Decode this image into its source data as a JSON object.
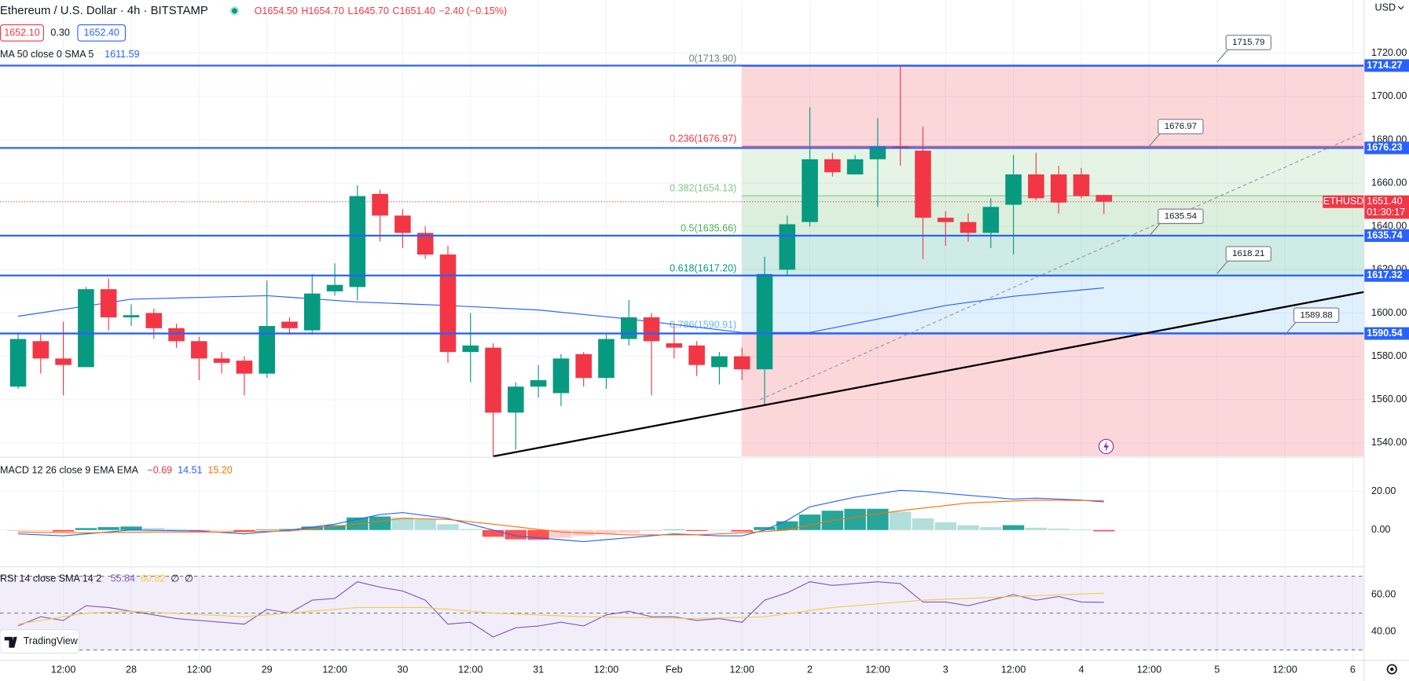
{
  "chart_data": [
    {
      "type": "candlestick",
      "title": "Ethereum / U.S. Dollar · 4h · BITSTAMP",
      "ohlc": [
        "O1654.50",
        "H1654.70",
        "L1645.70",
        "C1651.40",
        "−2.40 (−0.15%)"
      ],
      "up_color": "#089981",
      "down_color": "#f23645",
      "open": [
        1566,
        1587,
        1579,
        1575,
        1611,
        1598,
        1600,
        1593,
        1587,
        1579,
        1578,
        1572,
        1596,
        1592,
        1610,
        1612,
        1655,
        1645,
        1637,
        1627,
        1582,
        1584,
        1554,
        1566,
        1563,
        1581,
        1570,
        1588,
        1598,
        1586,
        1585,
        1575,
        1580,
        1574,
        1620,
        1642,
        1671,
        1664,
        1671,
        1677,
        1675,
        1644,
        1642,
        1637,
        1650,
        1664,
        1664,
        1664,
        1654.5
      ],
      "high": [
        1591,
        1590,
        1596,
        1612,
        1616,
        1604,
        1602,
        1595,
        1589,
        1582,
        1580,
        1615,
        1598,
        1618,
        1623,
        1659,
        1657,
        1648,
        1640,
        1631,
        1600,
        1586,
        1568,
        1576,
        1581,
        1582,
        1590,
        1606,
        1600,
        1594,
        1587,
        1582,
        1584,
        1626,
        1645,
        1695,
        1674,
        1673,
        1690,
        1713.9,
        1686,
        1647,
        1646,
        1653,
        1673,
        1674,
        1668,
        1667,
        1654.7
      ],
      "low": [
        1565,
        1572,
        1562,
        1575,
        1592,
        1594,
        1588,
        1584,
        1569,
        1572,
        1562,
        1570,
        1590,
        1590,
        1608,
        1606,
        1633,
        1630,
        1625,
        1577,
        1568,
        1534,
        1537,
        1561,
        1557,
        1566,
        1565,
        1585,
        1562,
        1579,
        1571,
        1567,
        1569,
        1557,
        1617,
        1640,
        1663,
        1664,
        1649,
        1668,
        1625,
        1631,
        1633,
        1630,
        1627,
        1652,
        1646,
        1653,
        1645.7
      ],
      "close": [
        1588,
        1579,
        1576,
        1611,
        1598,
        1599,
        1593,
        1587,
        1579,
        1577,
        1572,
        1594,
        1593,
        1609,
        1613,
        1654,
        1645,
        1637,
        1627,
        1582,
        1585,
        1554,
        1566,
        1569,
        1579,
        1570,
        1588,
        1598,
        1587,
        1584,
        1576,
        1580,
        1574,
        1618,
        1641,
        1671,
        1665,
        1671,
        1677,
        1676,
        1644,
        1642,
        1637,
        1649,
        1664,
        1653,
        1651,
        1654,
        1651.4
      ],
      "xlim": [
        -0.8,
        59.5
      ],
      "xticks": [
        {
          "value": 2,
          "label": "12:00"
        },
        {
          "value": 5,
          "label": "28"
        },
        {
          "value": 8,
          "label": "12:00"
        },
        {
          "value": 11,
          "label": "29"
        },
        {
          "value": 14,
          "label": "12:00"
        },
        {
          "value": 17,
          "label": "30"
        },
        {
          "value": 20,
          "label": "12:00"
        },
        {
          "value": 23,
          "label": "31"
        },
        {
          "value": 26,
          "label": "12:00"
        },
        {
          "value": 29,
          "label": "Feb"
        },
        {
          "value": 32,
          "label": "12:00"
        },
        {
          "value": 35,
          "label": "2"
        },
        {
          "value": 38,
          "label": "12:00"
        },
        {
          "value": 41,
          "label": "3"
        },
        {
          "value": 44,
          "label": "12:00"
        },
        {
          "value": 47,
          "label": "4"
        },
        {
          "value": 50,
          "label": "12:00"
        },
        {
          "value": 53,
          "label": "5"
        },
        {
          "value": 56,
          "label": "12:00"
        },
        {
          "value": 59,
          "label": "6"
        }
      ],
      "ylim": [
        1533.8,
        1744.5
      ],
      "yticks": [
        {
          "value": 1720,
          "label": "1720.00"
        },
        {
          "value": 1700,
          "label": "1700.00"
        },
        {
          "value": 1680,
          "label": "1680.00"
        },
        {
          "value": 1660,
          "label": "1660.00"
        },
        {
          "value": 1640,
          "label": "1640.00"
        },
        {
          "value": 1620,
          "label": "1620.00"
        },
        {
          "value": 1600,
          "label": "1600.00"
        },
        {
          "value": 1580,
          "label": "1580.00"
        },
        {
          "value": 1560,
          "label": "1560.00"
        },
        {
          "value": 1540,
          "label": "1540.00"
        }
      ],
      "grid": true,
      "ma": {
        "name": "MA 50 close 0 SMA 5",
        "color": "#2962ff",
        "x": [
          0,
          5,
          11,
          15,
          19,
          23,
          27,
          32,
          35,
          38,
          41,
          44,
          48
        ],
        "values": [
          1598.5,
          1606.4,
          1608,
          1605.1,
          1603.5,
          1601.4,
          1597.2,
          1591,
          1591,
          1597.2,
          1603.5,
          1607.7,
          1611.59
        ]
      },
      "fib": {
        "x_start": 32,
        "levels": [
          {
            "value": 1713.9,
            "label": "0(1713.90)",
            "color": "#787b86",
            "fill": "rgba(242,54,69,0.2)"
          },
          {
            "value": 1676.97,
            "label": "0.236(1676.97)",
            "color": "#f23645",
            "fill": "rgba(129,199,132,0.2)"
          },
          {
            "value": 1654.13,
            "label": "0.382(1654.13)",
            "color": "#81c784",
            "fill": "rgba(76,175,80,0.2)"
          },
          {
            "value": 1635.66,
            "label": "0.5(1635.66)",
            "color": "#4caf50",
            "fill": "rgba(8,153,129,0.2)"
          },
          {
            "value": 1617.2,
            "label": "0.618(1617.20)",
            "color": "#089981",
            "fill": "rgba(100,181,246,0.2)"
          },
          {
            "value": 1590.91,
            "label": "0.786(1590.91)",
            "color": "#64b5f6",
            "fill": "rgba(242,54,69,0.2)"
          }
        ]
      },
      "hlines": {
        "color": "#2962ff",
        "values": [
          1714.27,
          1676.23,
          1635.74,
          1617.32,
          1590.54
        ]
      },
      "notes": [
        {
          "x": 53,
          "value": 1715.79
        },
        {
          "x": 50,
          "value": 1676.97
        },
        {
          "x": 50,
          "value": 1635.54
        },
        {
          "x": 53,
          "value": 1618.21
        },
        {
          "x": 56,
          "value": 1589.88
        }
      ],
      "trendlines": [
        {
          "points": [
            [
              21,
              1533.8
            ],
            [
              59.5,
              1609.7
            ]
          ],
          "color": "#000000",
          "dashed": false
        },
        {
          "points": [
            [
              32.8,
              1560
            ],
            [
              59.5,
              1683.5
            ]
          ],
          "color": "#9598a1",
          "dashed": true
        }
      ],
      "last_price": {
        "value": 1651.4,
        "label": "1651.40"
      },
      "symbol": "ETHUSD",
      "countdown": "01:30:17"
    },
    {
      "type": "macd",
      "title": "MACD 12 26 close 9 EMA EMA",
      "ylim": [
        -18.6,
        37.2
      ],
      "yticks": [
        {
          "value": 20,
          "label": "20.00"
        },
        {
          "value": 0,
          "label": "0.00"
        }
      ],
      "histogram": {
        "colors": [
          "#26a69a",
          "#b2dfdb",
          "#ffcdd2",
          "#ff5252"
        ],
        "last_label": "−0.69",
        "values": [
          -0.5,
          -0.5,
          -0.8,
          1.0,
          1.5,
          1.8,
          1.0,
          0.5,
          -0.3,
          -0.3,
          -0.8,
          0.3,
          0.5,
          1.8,
          2.5,
          6.5,
          7.0,
          6.5,
          5.5,
          3.0,
          0.5,
          -3.5,
          -4.8,
          -5.0,
          -4.0,
          -3.0,
          -2.0,
          -1.5,
          -0.5,
          0.2,
          -0.5,
          -0.3,
          -0.8,
          1.5,
          4.5,
          8.0,
          10.0,
          11.0,
          11.0,
          9.5,
          6.0,
          4.0,
          2.5,
          1.5,
          2.5,
          1.2,
          0.7,
          0.3,
          -0.69
        ]
      },
      "macd": {
        "color": "#2962ff",
        "x": [
          0,
          2,
          5,
          8,
          10,
          12,
          14,
          16,
          17,
          19,
          21,
          22,
          24,
          25,
          27,
          29,
          31,
          32,
          33,
          34,
          35,
          37,
          39,
          40,
          42,
          44,
          45,
          47,
          48
        ],
        "values": [
          -2,
          -3,
          0,
          -0.5,
          -2,
          0,
          3,
          8,
          9,
          6,
          0,
          -3,
          -5,
          -6,
          -4,
          -2,
          -3,
          -3,
          0,
          5,
          12,
          17,
          20.5,
          20,
          18,
          16,
          16.5,
          15.5,
          14.51
        ]
      },
      "signal": {
        "color": "#ff6d00",
        "last_label": "15.20",
        "x": [
          0,
          3,
          6,
          9,
          12,
          15,
          17,
          19,
          21,
          24,
          27,
          30,
          32,
          34,
          36,
          39,
          42,
          45,
          48
        ],
        "values": [
          -1,
          -1.5,
          -1,
          -1,
          -0.5,
          3,
          6,
          5.5,
          3,
          -1,
          -2.5,
          -2.5,
          -1.5,
          0,
          5,
          10,
          14,
          15.5,
          15.2
        ]
      }
    },
    {
      "type": "rsi",
      "title": "RSI 14 close SMA 14 2",
      "extra_labels": [
        "∅",
        "∅"
      ],
      "ylim": [
        24.4,
        74.6
      ],
      "yticks": [
        {
          "value": 60,
          "label": "60.00"
        },
        {
          "value": 40,
          "label": "40.00"
        }
      ],
      "levels": [
        70,
        50,
        30
      ],
      "band_color": "rgba(126,87,194,0.1)",
      "rsi": {
        "color": "#7e57c2",
        "values": [
          43,
          48,
          46,
          54,
          53,
          51,
          49,
          47,
          46,
          45,
          44,
          52,
          50,
          57,
          58,
          67,
          64,
          62,
          57,
          44,
          45,
          37,
          42,
          43,
          45,
          43,
          49,
          51,
          48,
          48,
          46,
          47,
          45,
          57,
          61,
          67,
          65,
          66,
          67,
          66,
          56,
          56,
          54,
          57,
          60,
          57,
          59,
          56,
          55.84
        ]
      },
      "rsi_ma": {
        "color": "#f7c948",
        "x": [
          0,
          3,
          5,
          10,
          15,
          18,
          21,
          25,
          30,
          33,
          36,
          40,
          44,
          48
        ],
        "values": [
          44,
          50,
          51,
          48,
          53,
          53,
          50,
          48,
          47,
          48,
          53,
          57,
          59,
          60.82
        ]
      }
    }
  ],
  "quote": {
    "bid": "1652.10",
    "spread": "0.30",
    "ask": "1652.40"
  },
  "currency": "USD",
  "brand": "TradingView"
}
